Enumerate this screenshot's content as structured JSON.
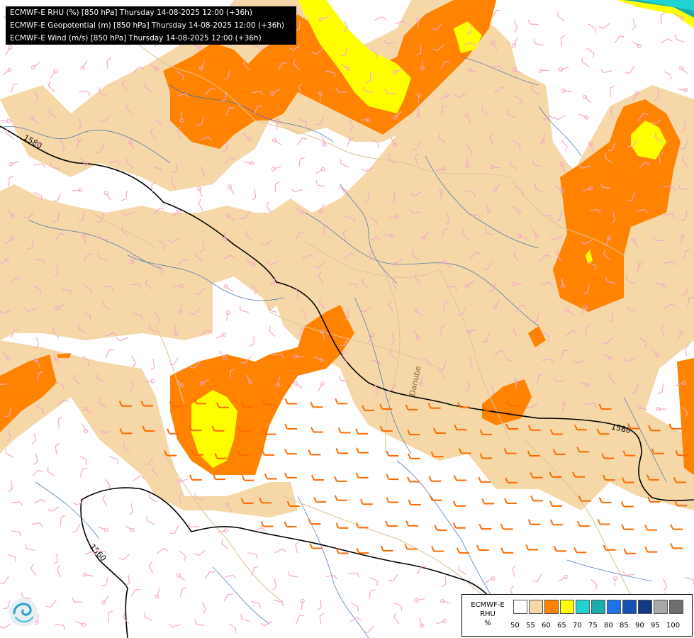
{
  "header": {
    "lines": [
      "ECMWF-E RHU (%) [850 hPa] Thursday 14-08-2025 12:00 (+36h)",
      "ECMWF-E Geopotential (m) [850 hPa] Thursday 14-08-2025 12:00 (+36h)",
      "ECMWF-E Wind (m/s) [850 hPa] Thursday 14-08-2025 12:00 (+36h)"
    ]
  },
  "contours": {
    "labels": [
      "1580",
      "1580",
      "1560"
    ]
  },
  "legend": {
    "model": "ECMWF-E",
    "variable": "RHU",
    "unit": "%",
    "ticks": [
      "50",
      "55",
      "60",
      "65",
      "70",
      "75",
      "80",
      "85",
      "90",
      "95",
      "100"
    ],
    "colors": [
      "#ffffff",
      "#f5d7a8",
      "#ff8200",
      "#ffff00",
      "#20d4d4",
      "#1aabab",
      "#1e73e8",
      "#1550b4",
      "#123a82",
      "#a9a9a9",
      "#6e6e6e"
    ]
  },
  "colors": {
    "rh_55": "#f5d7a8",
    "rh_60": "#ff8200",
    "rh_65": "#ffff00",
    "rh_70": "#20d4d4",
    "wind_light": "#f4a8c8",
    "wind_strong": "#ff6a00",
    "rivers": "#3d6fb0",
    "borders": "#e0c59a",
    "geopotential": "#000000"
  },
  "map_labels": [
    "Danube"
  ],
  "logo": "ecmwf-swirl-icon"
}
